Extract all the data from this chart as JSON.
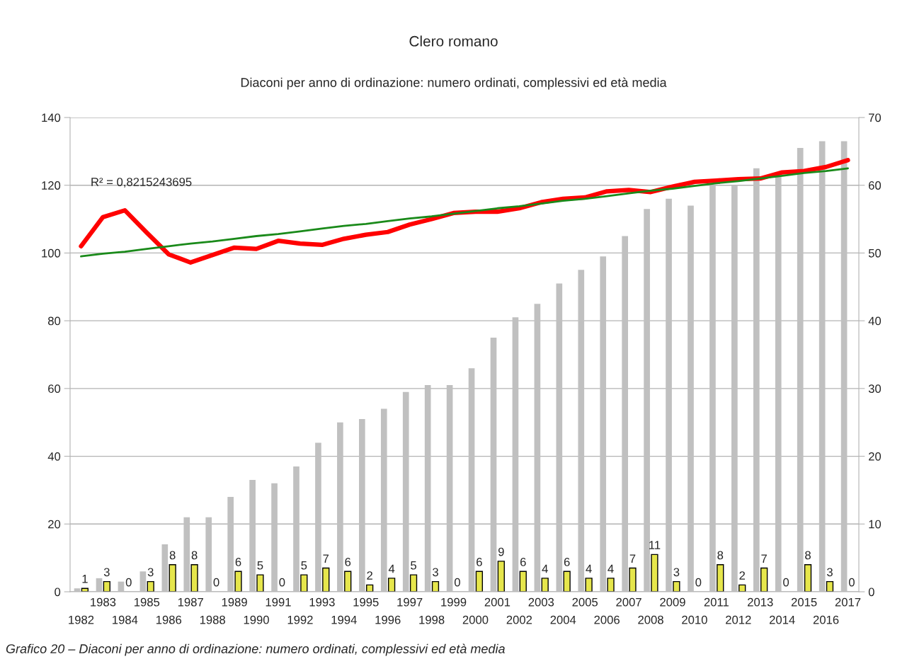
{
  "chart_data": {
    "type": "bar",
    "title": "Clero romano",
    "subtitle": "Diaconi per anno di ordinazione: numero ordinati, complessivi ed età media",
    "categories": [
      "1982",
      "1983",
      "1984",
      "1985",
      "1986",
      "1987",
      "1988",
      "1989",
      "1990",
      "1991",
      "1992",
      "1993",
      "1994",
      "1995",
      "1996",
      "1997",
      "1998",
      "1999",
      "2000",
      "2001",
      "2002",
      "2003",
      "2004",
      "2005",
      "2006",
      "2007",
      "2008",
      "2009",
      "2010",
      "2011",
      "2012",
      "2013",
      "2014",
      "2015",
      "2016",
      "2017"
    ],
    "series": [
      {
        "color": "#c0c0c0",
        "values": [
          1,
          4,
          3,
          6,
          14,
          22,
          22,
          28,
          33,
          32,
          37,
          44,
          50,
          51,
          54,
          59,
          61,
          61,
          66,
          75,
          81,
          85,
          91,
          95,
          99,
          105,
          113,
          116,
          114,
          120,
          120,
          125,
          123,
          131,
          133,
          133
        ]
      },
      {
        "color": "#e6e64c",
        "values": [
          1,
          3,
          0,
          3,
          8,
          8,
          0,
          6,
          5,
          0,
          5,
          7,
          6,
          2,
          4,
          5,
          3,
          0,
          6,
          9,
          6,
          4,
          6,
          4,
          4,
          7,
          11,
          3,
          0,
          8,
          2,
          7,
          0,
          8,
          3,
          0
        ],
        "value_labels": [
          "1",
          "3",
          "0",
          "3",
          "8",
          "8",
          "0",
          "6",
          "5",
          "0",
          "5",
          "7",
          "6",
          "2",
          "4",
          "5",
          "3",
          "0",
          "6",
          "9",
          "6",
          "4",
          "6",
          "4",
          "4",
          "7",
          "11",
          "3",
          "0",
          "8",
          "2",
          "7",
          "0",
          "8",
          "3",
          "0"
        ]
      },
      {
        "type": "line",
        "axis": "y2",
        "color": "#ff0000",
        "values": [
          51.0,
          55.3,
          56.3,
          53.0,
          49.8,
          48.6,
          49.7,
          50.8,
          50.6,
          51.8,
          51.4,
          51.2,
          52.1,
          52.7,
          53.1,
          54.2,
          55.0,
          55.9,
          56.1,
          56.1,
          56.6,
          57.5,
          58.0,
          58.2,
          59.1,
          59.3,
          59.0,
          59.8,
          60.5,
          60.7,
          60.9,
          61.0,
          61.9,
          62.1,
          62.7,
          63.7
        ]
      },
      {
        "type": "line",
        "axis": "y2",
        "color": "#1a8a1a",
        "values": [
          49.5,
          49.9,
          50.2,
          50.6,
          51.0,
          51.4,
          51.7,
          52.1,
          52.5,
          52.8,
          53.2,
          53.6,
          54.0,
          54.3,
          54.7,
          55.1,
          55.4,
          55.8,
          56.2,
          56.6,
          56.9,
          57.3,
          57.7,
          58.0,
          58.4,
          58.8,
          59.2,
          59.5,
          59.9,
          60.3,
          60.6,
          61.0,
          61.4,
          61.8,
          62.1,
          62.5
        ]
      }
    ],
    "ylim": [
      0,
      140
    ],
    "yticks": [
      0,
      20,
      40,
      60,
      80,
      100,
      120,
      140
    ],
    "y2lim": [
      0,
      70
    ],
    "y2ticks": [
      0,
      10,
      20,
      30,
      40,
      50,
      60,
      70
    ],
    "grid": "y",
    "annotations": [
      "R² = 0,8215243695",
      "Grafico 20 – Diaconi per anno di ordinazione: numero ordinati, complessivi ed età media"
    ]
  }
}
